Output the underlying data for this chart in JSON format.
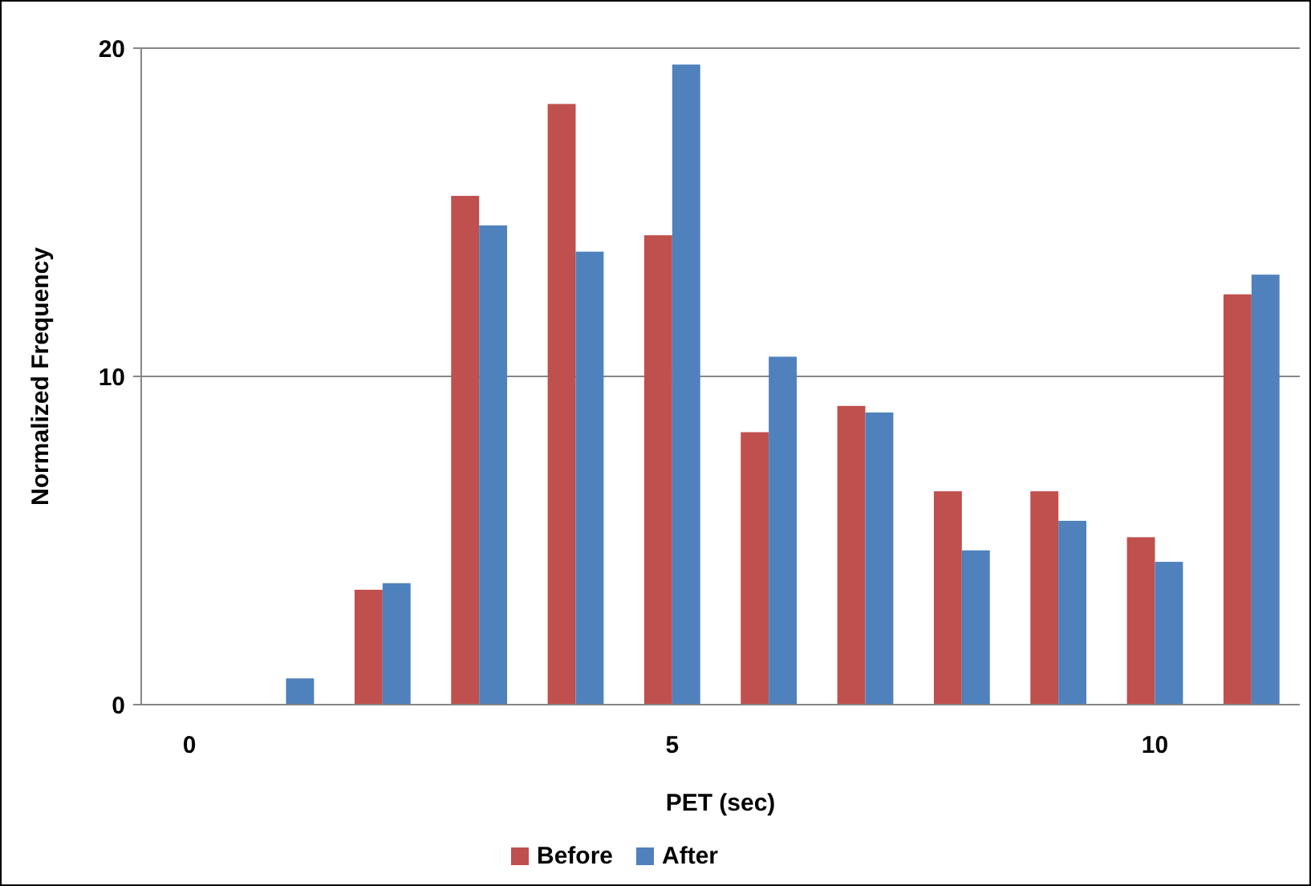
{
  "chart_data": {
    "type": "bar",
    "xlabel": "PET (sec)",
    "ylabel": "Normalized Frequency",
    "categories": [
      "0",
      null,
      null,
      null,
      null,
      "5",
      null,
      null,
      null,
      null,
      "10",
      null
    ],
    "series": [
      {
        "name": "Before",
        "color": "#c0504d",
        "values": [
          0,
          0,
          3.5,
          15.5,
          18.3,
          14.3,
          8.3,
          9.1,
          6.5,
          6.5,
          5.1,
          12.5
        ]
      },
      {
        "name": "After",
        "color": "#4f81bd",
        "values": [
          0,
          0.8,
          3.7,
          14.6,
          13.8,
          19.5,
          10.6,
          8.9,
          4.7,
          5.6,
          4.35,
          13.1
        ]
      }
    ],
    "ylim": [
      0,
      20
    ],
    "yticks": [
      0,
      10,
      20
    ],
    "grid": "y",
    "legend": "bottom"
  }
}
